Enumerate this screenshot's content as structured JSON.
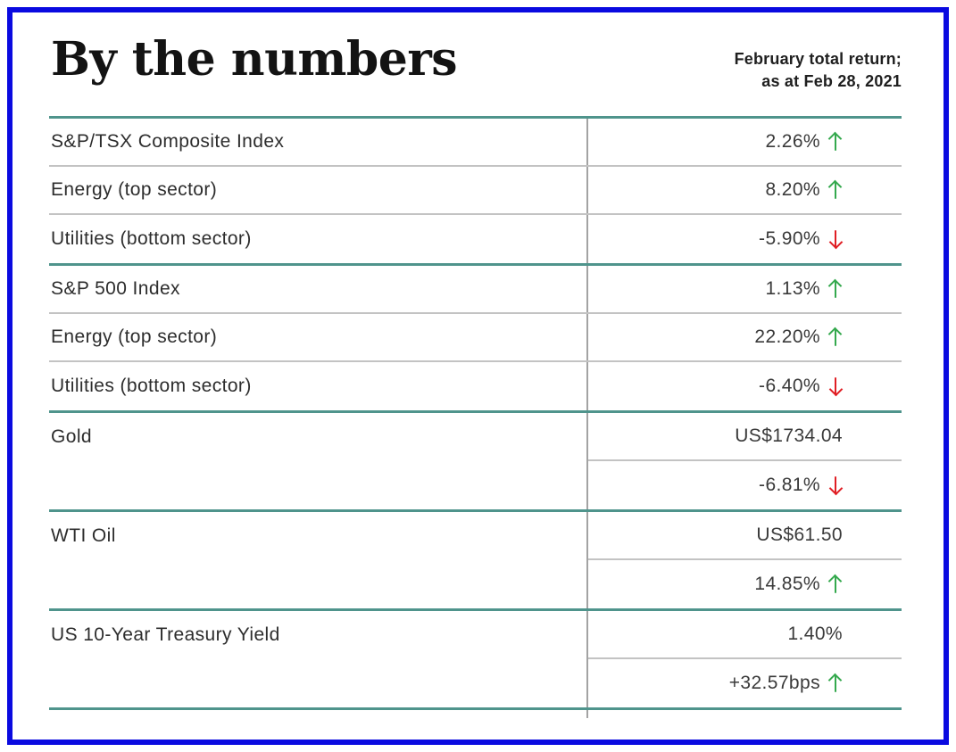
{
  "header": {
    "title": "By the numbers",
    "note_line1": "February total return;",
    "note_line2": "as at Feb 28, 2021"
  },
  "chart_data": {
    "type": "table",
    "title": "By the numbers",
    "note": "February total return; as at Feb 28, 2021",
    "sections": [
      {
        "rows": [
          {
            "label": "S&P/TSX Composite Index",
            "value": "2.26%",
            "direction": "up"
          },
          {
            "label": "Energy (top sector)",
            "value": "8.20%",
            "direction": "up"
          },
          {
            "label": "Utilities (bottom sector)",
            "value": "-5.90%",
            "direction": "down"
          }
        ]
      },
      {
        "rows": [
          {
            "label": "S&P 500 Index",
            "value": "1.13%",
            "direction": "up"
          },
          {
            "label": "Energy (top sector)",
            "value": "22.20%",
            "direction": "up"
          },
          {
            "label": "Utilities (bottom sector)",
            "value": "-6.40%",
            "direction": "down"
          }
        ]
      },
      {
        "label": "Gold",
        "rows": [
          {
            "value": "US$1734.04",
            "direction": "none"
          },
          {
            "value": "-6.81%",
            "direction": "down"
          }
        ]
      },
      {
        "label": "WTI Oil",
        "rows": [
          {
            "value": "US$61.50",
            "direction": "none"
          },
          {
            "value": "14.85%",
            "direction": "up"
          }
        ]
      },
      {
        "label": "US 10-Year Treasury Yield",
        "rows": [
          {
            "value": "1.40%",
            "direction": "none"
          },
          {
            "value": "+32.57bps",
            "direction": "up"
          }
        ]
      }
    ]
  },
  "colors": {
    "frame_blue": "#0a0ae0",
    "divider_teal": "#4f948c",
    "positive_green": "#35a94e",
    "negative_red": "#e01e24",
    "row_line_gray": "#c3c3c3",
    "column_line_gray": "#a3a3a3"
  }
}
